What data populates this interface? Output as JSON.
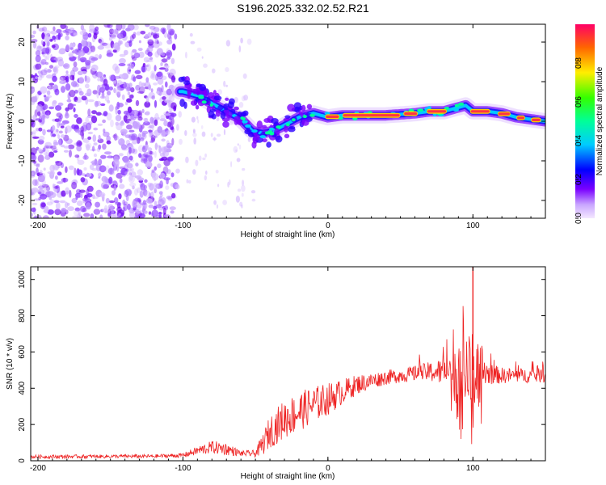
{
  "title": "S196.2025.332.02.52.R21",
  "colors": {
    "snr_line": "#ee2222",
    "spec_blob": "#7a2cff",
    "spec_ridge": "#ff3344",
    "axis": "#000000"
  },
  "chart_data": [
    {
      "type": "heatmap",
      "name": "spectrogram",
      "xlabel": "Height of straight line (km)",
      "ylabel": "Frequency (Hz)",
      "xlim": [
        -205,
        150
      ],
      "ylim": [
        -24.5,
        24.5
      ],
      "xticks": [
        "-200",
        "-100",
        "0",
        "100"
      ],
      "xtick_values": [
        -200,
        -100,
        0,
        100
      ],
      "yticks": [
        "20",
        "10",
        "0",
        "-10",
        "-20"
      ],
      "ytick_values": [
        20,
        10,
        0,
        -10,
        -20
      ],
      "ridge": {
        "x": [
          -100,
          -90,
          -80,
          -70,
          -60,
          -52,
          -45,
          -38,
          -30,
          -20,
          -10,
          -5,
          0,
          10,
          20,
          40,
          60,
          70,
          80,
          90,
          95,
          100,
          110,
          120,
          130,
          140,
          150
        ],
        "y": [
          7.5,
          6.5,
          4.5,
          2.5,
          0.5,
          -2.5,
          -3.0,
          -2.5,
          -1.0,
          1.0,
          2.0,
          1.5,
          1.0,
          1.5,
          1.5,
          1.5,
          2.0,
          2.5,
          2.5,
          3.5,
          4.0,
          2.5,
          2.5,
          2.0,
          1.0,
          0.5,
          0.0
        ]
      },
      "colorbar": {
        "label": "Normalized spectral amplitude",
        "range": [
          0.0,
          1.0
        ],
        "ticks": [
          "0.0",
          "0.2",
          "0.4",
          "0.6",
          "0.8"
        ],
        "tick_values": [
          0.0,
          0.2,
          0.4,
          0.6,
          0.8
        ]
      }
    },
    {
      "type": "line",
      "name": "snr",
      "xlabel": "Height of straight line (km)",
      "ylabel": "SNR (10 * v/v)",
      "xlim": [
        -205,
        150
      ],
      "ylim": [
        0,
        1070
      ],
      "xticks": [
        "-200",
        "-100",
        "0",
        "100"
      ],
      "xtick_values": [
        -200,
        -100,
        0,
        100
      ],
      "yticks": [
        "0",
        "200",
        "400",
        "600",
        "800",
        "1000"
      ],
      "ytick_values": [
        0,
        200,
        400,
        600,
        800,
        1000
      ],
      "envelope": {
        "x": [
          -205,
          -120,
          -100,
          -90,
          -80,
          -70,
          -60,
          -50,
          -45,
          -40,
          -30,
          -20,
          -10,
          0,
          10,
          20,
          30,
          40,
          50,
          60,
          70,
          80,
          85,
          90,
          95,
          100,
          105,
          110,
          120,
          130,
          140,
          150
        ],
        "mean": [
          22,
          25,
          30,
          55,
          75,
          65,
          40,
          40,
          90,
          160,
          230,
          270,
          310,
          340,
          380,
          420,
          440,
          460,
          470,
          480,
          490,
          490,
          480,
          470,
          480,
          490,
          500,
          480,
          470,
          470,
          470,
          470
        ],
        "spread": [
          10,
          10,
          12,
          25,
          35,
          35,
          15,
          20,
          60,
          90,
          110,
          110,
          100,
          90,
          70,
          55,
          45,
          40,
          40,
          45,
          55,
          80,
          130,
          180,
          200,
          230,
          200,
          60,
          45,
          40,
          40,
          40
        ]
      },
      "peak": {
        "x": 100,
        "y": 1070
      }
    }
  ]
}
